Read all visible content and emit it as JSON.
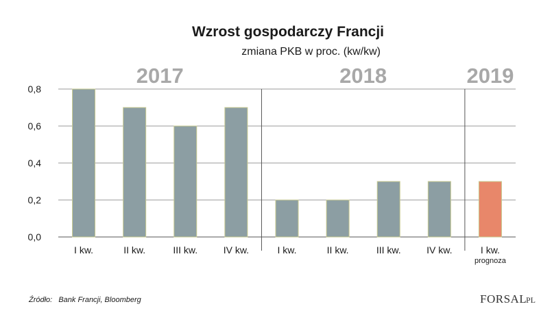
{
  "source": {
    "label": "Źródło:",
    "text": "Bank Francji, Bloomberg"
  },
  "logo": {
    "main": "FORSAL",
    "suffix": ".PL"
  },
  "colors": {
    "bar": "#8c9ea3",
    "forecast": "#e8876a",
    "bar_border": "#c7c98f",
    "grid": "#9a9a9a",
    "year": "#a8a8a8"
  },
  "chart_data": {
    "type": "bar",
    "title": "Wzrost gospodarczy Francji",
    "subtitle": "zmiana PKB w proc. (kw/kw)",
    "years": [
      "2017",
      "2018",
      "2019"
    ],
    "categories": [
      "I kw.",
      "II kw.",
      "III kw.",
      "IV kw.",
      "I kw.",
      "II kw.",
      "III kw.",
      "IV kw.",
      "I kw."
    ],
    "year_of_category": [
      0,
      0,
      0,
      0,
      1,
      1,
      1,
      1,
      2
    ],
    "values": [
      0.8,
      0.7,
      0.6,
      0.7,
      0.2,
      0.2,
      0.3,
      0.3,
      0.3
    ],
    "forecast_index": 8,
    "forecast_note": "prognoza",
    "ylim": [
      0,
      0.8
    ],
    "yticks": [
      0.0,
      0.2,
      0.4,
      0.6,
      0.8
    ],
    "ytick_labels": [
      "0,0",
      "0,2",
      "0,4",
      "0,6",
      "0,8"
    ],
    "grid": true
  }
}
